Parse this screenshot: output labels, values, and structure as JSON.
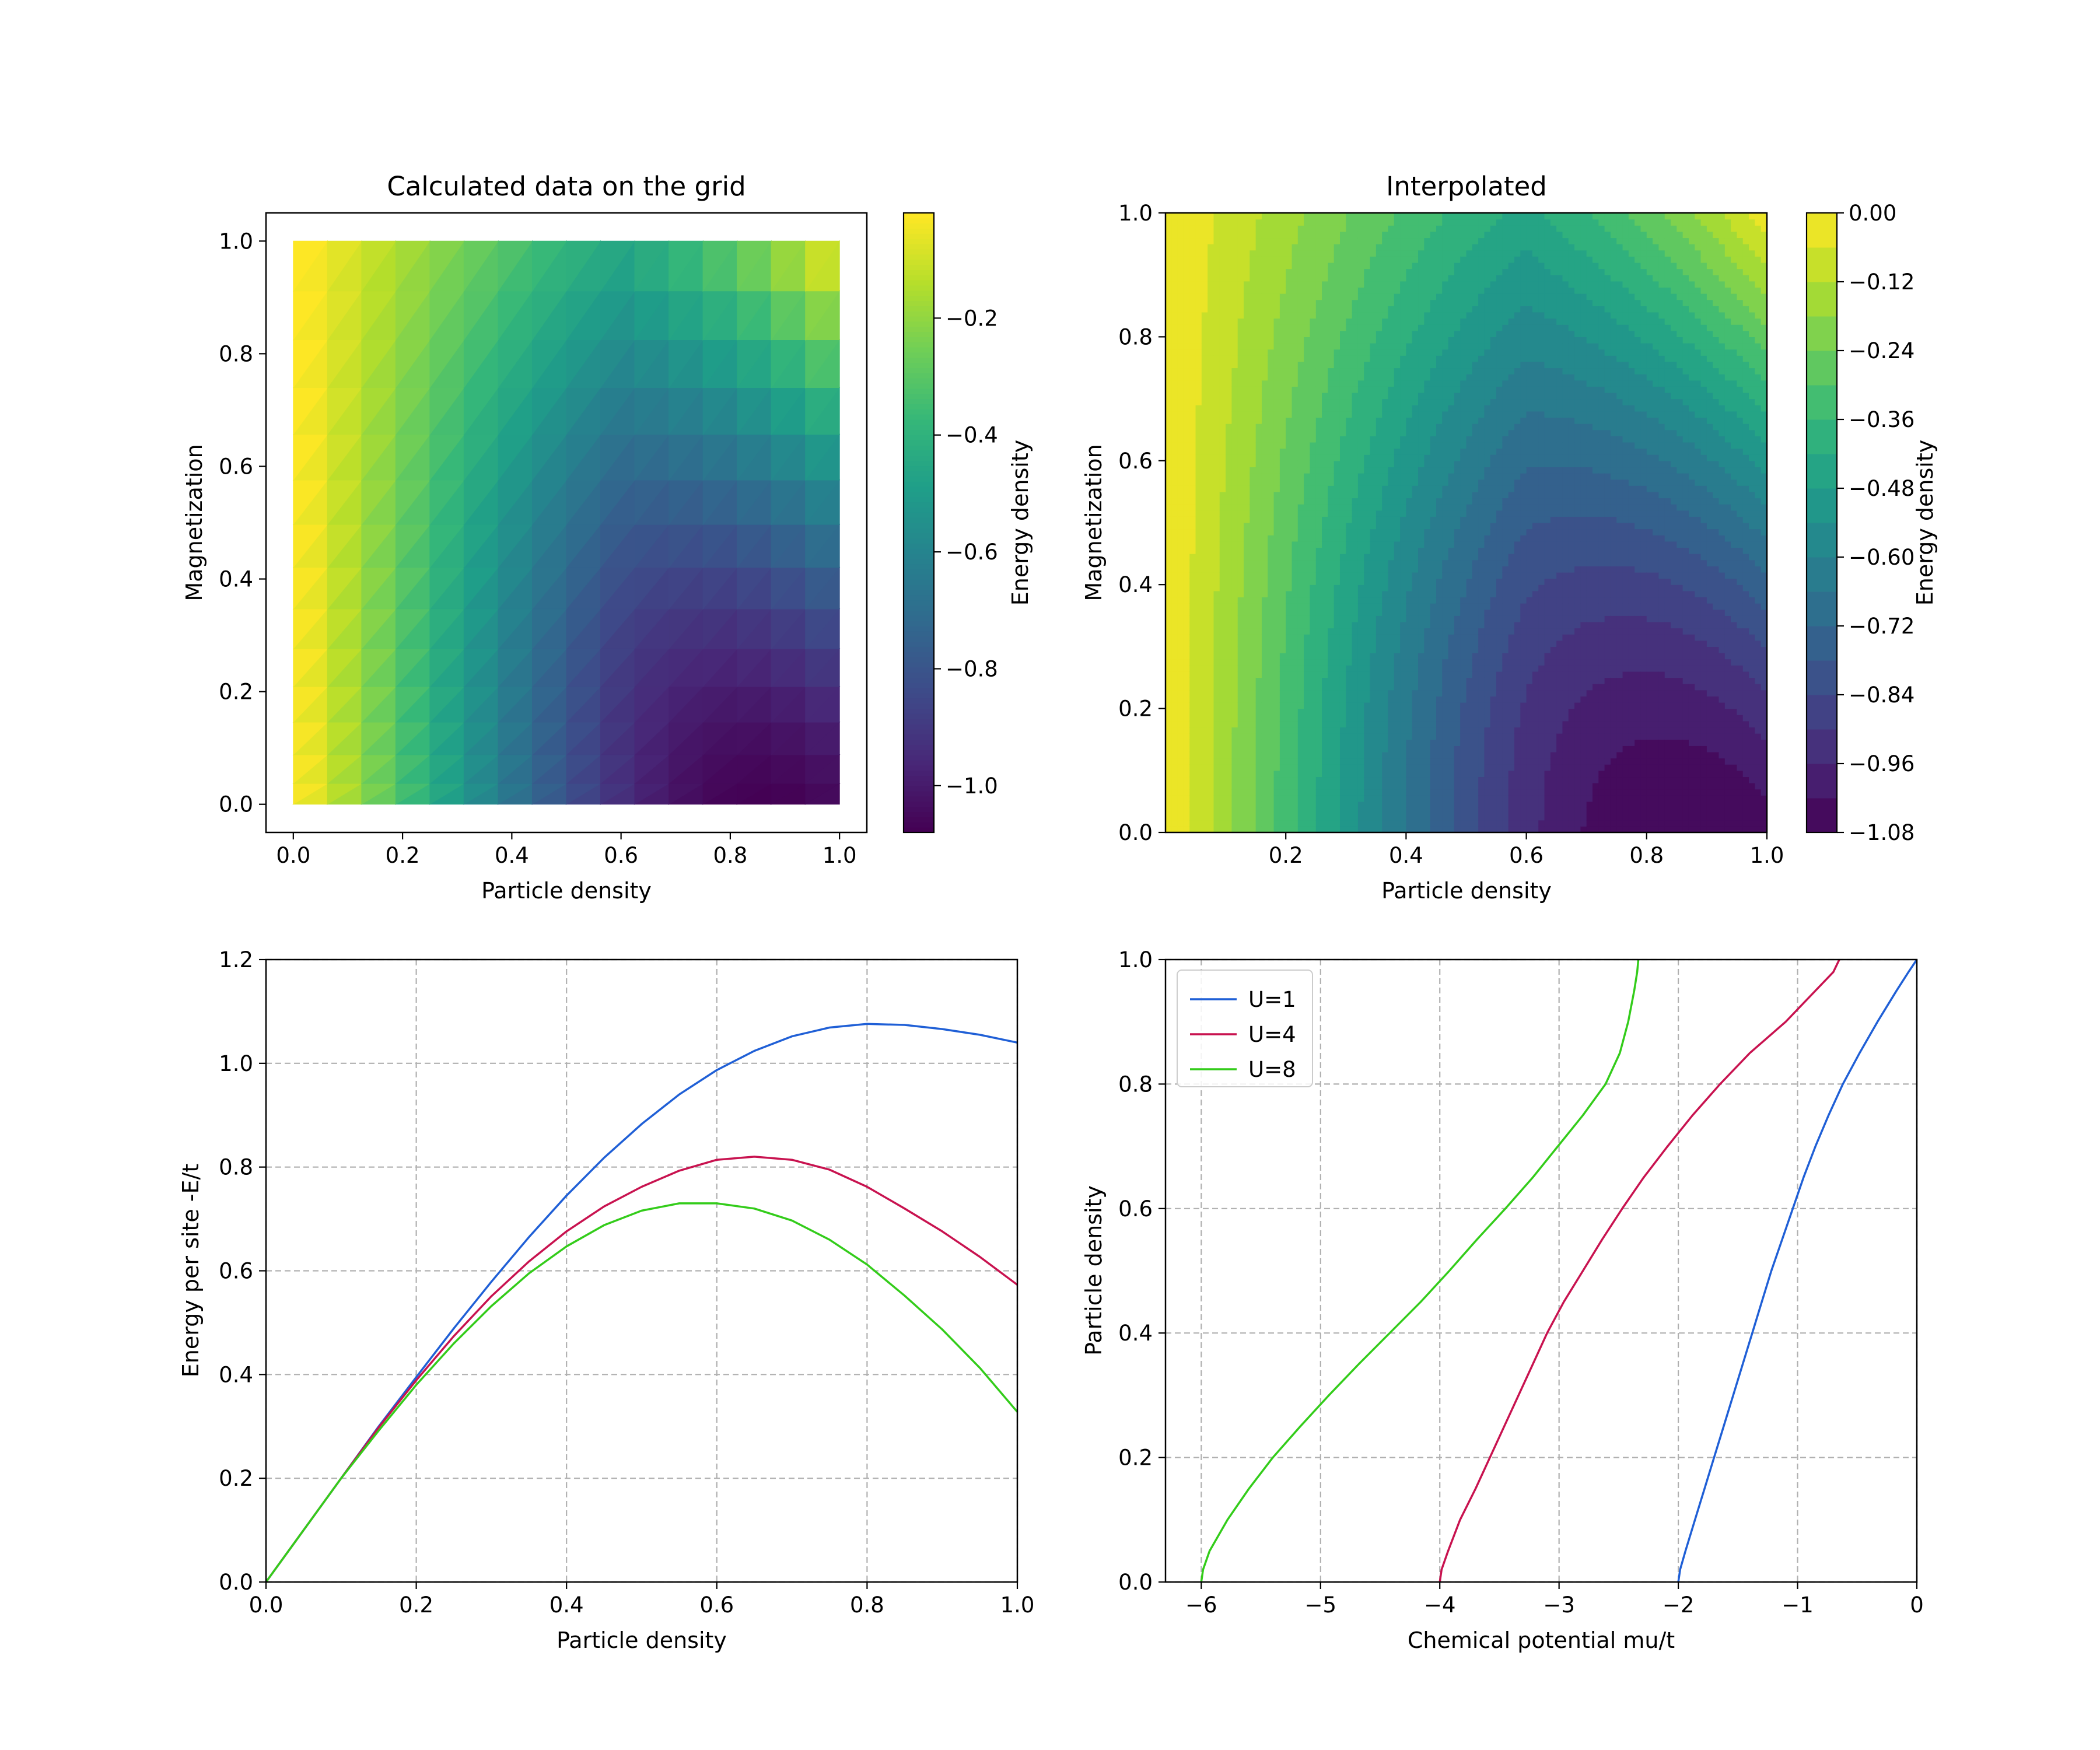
{
  "chart_data": [
    {
      "id": "grid",
      "type": "heatmap",
      "title": "Calculated data on the grid",
      "xlabel": "Particle density",
      "ylabel": "Magnetization",
      "xlim": [
        -0.05,
        1.05
      ],
      "ylim": [
        -0.05,
        1.05
      ],
      "xticks": [
        0.0,
        0.2,
        0.4,
        0.6,
        0.8,
        1.0
      ],
      "yticks": [
        0.0,
        0.2,
        0.4,
        0.6,
        0.8,
        1.0
      ],
      "xtick_labels": [
        "0.0",
        "0.2",
        "0.4",
        "0.6",
        "0.8",
        "1.0"
      ],
      "ytick_labels": [
        "0.0",
        "0.2",
        "0.4",
        "0.6",
        "0.8",
        "1.0"
      ],
      "value_range": [
        -1.08,
        -0.02
      ],
      "colormap": "viridis",
      "colorbar": {
        "label": "Energy density",
        "range": [
          -1.08,
          -0.02
        ],
        "ticks": [
          -1.0,
          -0.8,
          -0.6,
          -0.4,
          -0.2
        ],
        "tick_labels": [
          "−1.0",
          "−0.8",
          "−0.6",
          "−0.4",
          "−0.2"
        ]
      }
    },
    {
      "id": "interp",
      "type": "heatmap",
      "title": "Interpolated",
      "xlabel": "Particle density",
      "ylabel": "Magnetization",
      "xlim": [
        0.0,
        1.0
      ],
      "ylim": [
        0.0,
        1.0
      ],
      "xticks": [
        0.2,
        0.4,
        0.6,
        0.8,
        1.0
      ],
      "yticks": [
        0.0,
        0.2,
        0.4,
        0.6,
        0.8,
        1.0
      ],
      "xtick_labels": [
        "0.2",
        "0.4",
        "0.6",
        "0.8",
        "1.0"
      ],
      "ytick_labels": [
        "0.0",
        "0.2",
        "0.4",
        "0.6",
        "0.8",
        "1.0"
      ],
      "levels": 18,
      "value_range": [
        -1.08,
        0.0
      ],
      "colormap": "viridis",
      "colorbar": {
        "label": "Energy density",
        "range": [
          -1.08,
          0.0
        ],
        "ticks": [
          0.0,
          -0.12,
          -0.24,
          -0.36,
          -0.48,
          -0.6,
          -0.72,
          -0.84,
          -0.96,
          -1.08
        ],
        "tick_labels": [
          "0.00",
          "−0.12",
          "−0.24",
          "−0.36",
          "−0.48",
          "−0.60",
          "−0.72",
          "−0.84",
          "−0.96",
          "−1.08"
        ]
      }
    },
    {
      "id": "energy",
      "type": "line",
      "xlabel": "Particle density",
      "ylabel": "Energy per site -E/t",
      "xlim": [
        0.0,
        1.0
      ],
      "ylim": [
        0.0,
        1.2
      ],
      "grid": true,
      "xticks": [
        0.0,
        0.2,
        0.4,
        0.6,
        0.8,
        1.0
      ],
      "yticks": [
        0.0,
        0.2,
        0.4,
        0.6,
        0.8,
        1.0,
        1.2
      ],
      "xtick_labels": [
        "0.0",
        "0.2",
        "0.4",
        "0.6",
        "0.8",
        "1.0"
      ],
      "ytick_labels": [
        "0.0",
        "0.2",
        "0.4",
        "0.6",
        "0.8",
        "1.0",
        "1.2"
      ],
      "x": [
        0.0,
        0.05,
        0.1,
        0.15,
        0.2,
        0.25,
        0.3,
        0.35,
        0.4,
        0.45,
        0.5,
        0.55,
        0.6,
        0.65,
        0.7,
        0.75,
        0.8,
        0.85,
        0.9,
        0.95,
        1.0
      ],
      "series": [
        {
          "name": "U=1",
          "color": "#1f5fd6",
          "values": [
            0.0,
            0.1,
            0.2,
            0.3,
            0.395,
            0.489,
            0.579,
            0.665,
            0.745,
            0.818,
            0.883,
            0.94,
            0.987,
            1.024,
            1.052,
            1.069,
            1.076,
            1.074,
            1.066,
            1.055,
            1.04
          ]
        },
        {
          "name": "U=4",
          "color": "#c8124f",
          "values": [
            0.0,
            0.1,
            0.2,
            0.298,
            0.389,
            0.474,
            0.551,
            0.618,
            0.676,
            0.724,
            0.762,
            0.793,
            0.814,
            0.82,
            0.814,
            0.795,
            0.762,
            0.72,
            0.676,
            0.627,
            0.573
          ]
        },
        {
          "name": "U=8",
          "color": "#33cc1a",
          "values": [
            0.0,
            0.1,
            0.2,
            0.292,
            0.38,
            0.46,
            0.532,
            0.595,
            0.647,
            0.688,
            0.716,
            0.73,
            0.73,
            0.72,
            0.697,
            0.66,
            0.612,
            0.552,
            0.487,
            0.413,
            0.328
          ]
        }
      ]
    },
    {
      "id": "mu",
      "type": "line",
      "xlabel": "Chemical potential mu/t",
      "ylabel": "Particle density",
      "xlim": [
        -6.3,
        0.0
      ],
      "ylim": [
        0.0,
        1.0
      ],
      "grid": true,
      "xticks": [
        -6,
        -5,
        -4,
        -3,
        -2,
        -1,
        0
      ],
      "yticks": [
        0.0,
        0.2,
        0.4,
        0.6,
        0.8,
        1.0
      ],
      "xtick_labels": [
        "−6",
        "−5",
        "−4",
        "−3",
        "−2",
        "−1",
        "0"
      ],
      "ytick_labels": [
        "0.0",
        "0.2",
        "0.4",
        "0.6",
        "0.8",
        "1.0"
      ],
      "legend": "top-left",
      "y": [
        0.0,
        0.02,
        0.05,
        0.1,
        0.15,
        0.2,
        0.25,
        0.3,
        0.35,
        0.4,
        0.45,
        0.5,
        0.55,
        0.6,
        0.65,
        0.7,
        0.75,
        0.8,
        0.85,
        0.9,
        0.95,
        0.98,
        1.0
      ],
      "series": [
        {
          "name": "U=1",
          "color": "#1f5fd6",
          "x": [
            -2.0,
            -1.985,
            -1.94,
            -1.86,
            -1.78,
            -1.7,
            -1.62,
            -1.54,
            -1.46,
            -1.38,
            -1.3,
            -1.22,
            -1.13,
            -1.04,
            -0.95,
            -0.85,
            -0.74,
            -0.62,
            -0.48,
            -0.33,
            -0.17,
            -0.07,
            0.0
          ]
        },
        {
          "name": "U=4",
          "color": "#c8124f",
          "x": [
            -4.0,
            -3.985,
            -3.93,
            -3.83,
            -3.7,
            -3.58,
            -3.46,
            -3.34,
            -3.22,
            -3.1,
            -2.96,
            -2.8,
            -2.64,
            -2.47,
            -2.29,
            -2.09,
            -1.88,
            -1.65,
            -1.4,
            -1.1,
            -0.85,
            -0.7,
            -0.65
          ]
        },
        {
          "name": "U=8",
          "color": "#33cc1a",
          "x": [
            -6.0,
            -5.985,
            -5.93,
            -5.78,
            -5.6,
            -5.4,
            -5.17,
            -4.93,
            -4.68,
            -4.42,
            -4.16,
            -3.92,
            -3.69,
            -3.45,
            -3.22,
            -3.01,
            -2.8,
            -2.61,
            -2.49,
            -2.42,
            -2.37,
            -2.345,
            -2.335
          ]
        }
      ]
    }
  ]
}
